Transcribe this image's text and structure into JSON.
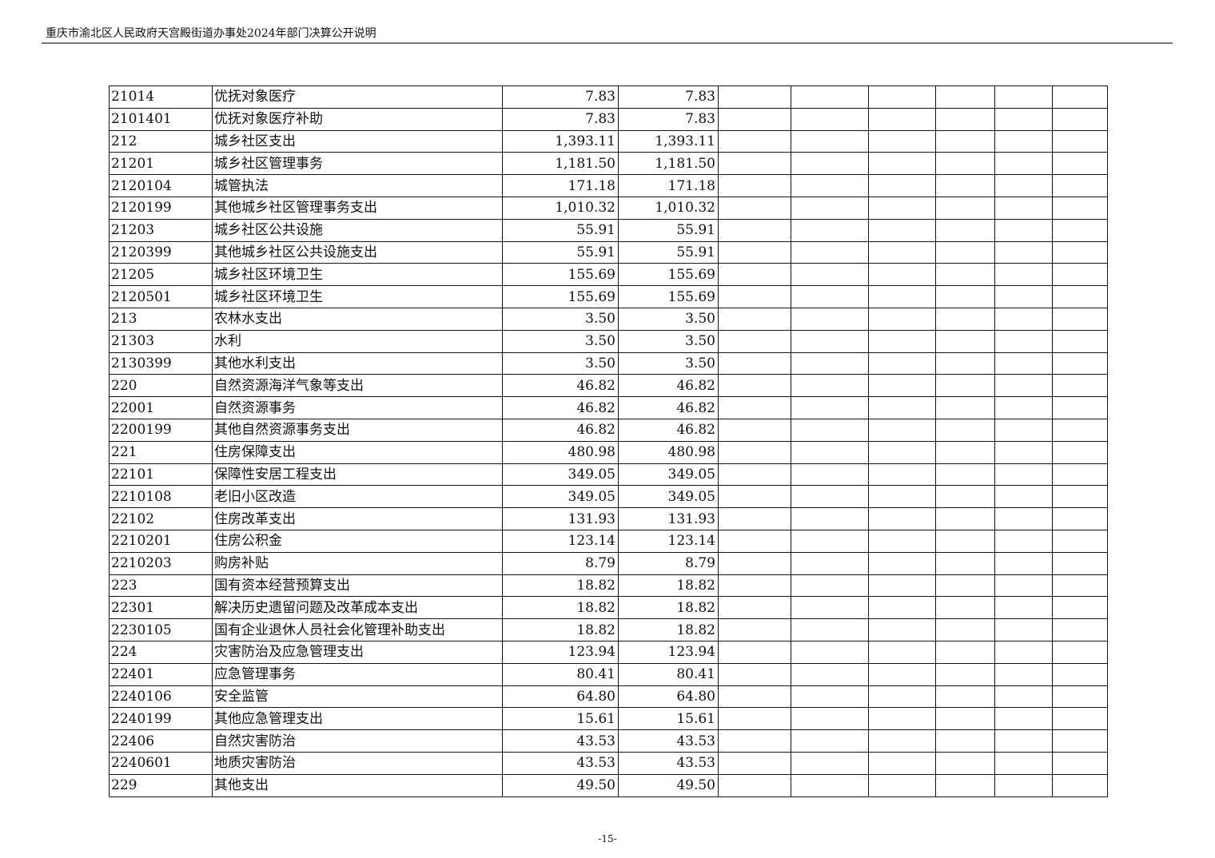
{
  "header": {
    "title": "重庆市渝北区人民政府天宫殿街道办事处2024年部门决算公开说明"
  },
  "table": {
    "rows": [
      {
        "code": "21014",
        "name": "优抚对象医疗",
        "v1": "7.83",
        "v2": "7.83"
      },
      {
        "code": "2101401",
        "name": "优抚对象医疗补助",
        "v1": "7.83",
        "v2": "7.83"
      },
      {
        "code": "212",
        "name": "城乡社区支出",
        "v1": "1,393.11",
        "v2": "1,393.11"
      },
      {
        "code": "21201",
        "name": "城乡社区管理事务",
        "v1": "1,181.50",
        "v2": "1,181.50"
      },
      {
        "code": "2120104",
        "name": "城管执法",
        "v1": "171.18",
        "v2": "171.18"
      },
      {
        "code": "2120199",
        "name": "其他城乡社区管理事务支出",
        "v1": "1,010.32",
        "v2": "1,010.32"
      },
      {
        "code": "21203",
        "name": "城乡社区公共设施",
        "v1": "55.91",
        "v2": "55.91"
      },
      {
        "code": "2120399",
        "name": "其他城乡社区公共设施支出",
        "v1": "55.91",
        "v2": "55.91"
      },
      {
        "code": "21205",
        "name": "城乡社区环境卫生",
        "v1": "155.69",
        "v2": "155.69"
      },
      {
        "code": "2120501",
        "name": "城乡社区环境卫生",
        "v1": "155.69",
        "v2": "155.69"
      },
      {
        "code": "213",
        "name": "农林水支出",
        "v1": "3.50",
        "v2": "3.50"
      },
      {
        "code": "21303",
        "name": "水利",
        "v1": "3.50",
        "v2": "3.50"
      },
      {
        "code": "2130399",
        "name": "其他水利支出",
        "v1": "3.50",
        "v2": "3.50"
      },
      {
        "code": "220",
        "name": "自然资源海洋气象等支出",
        "v1": "46.82",
        "v2": "46.82"
      },
      {
        "code": "22001",
        "name": "自然资源事务",
        "v1": "46.82",
        "v2": "46.82"
      },
      {
        "code": "2200199",
        "name": "其他自然资源事务支出",
        "v1": "46.82",
        "v2": "46.82"
      },
      {
        "code": "221",
        "name": "住房保障支出",
        "v1": "480.98",
        "v2": "480.98"
      },
      {
        "code": "22101",
        "name": "保障性安居工程支出",
        "v1": "349.05",
        "v2": "349.05"
      },
      {
        "code": "2210108",
        "name": "老旧小区改造",
        "v1": "349.05",
        "v2": "349.05"
      },
      {
        "code": "22102",
        "name": "住房改革支出",
        "v1": "131.93",
        "v2": "131.93"
      },
      {
        "code": "2210201",
        "name": "住房公积金",
        "v1": "123.14",
        "v2": "123.14"
      },
      {
        "code": "2210203",
        "name": "购房补贴",
        "v1": "8.79",
        "v2": "8.79"
      },
      {
        "code": "223",
        "name": "国有资本经营预算支出",
        "v1": "18.82",
        "v2": "18.82"
      },
      {
        "code": "22301",
        "name": "解决历史遗留问题及改革成本支出",
        "v1": "18.82",
        "v2": "18.82"
      },
      {
        "code": "2230105",
        "name": "国有企业退休人员社会化管理补助支出",
        "v1": "18.82",
        "v2": "18.82"
      },
      {
        "code": "224",
        "name": "灾害防治及应急管理支出",
        "v1": "123.94",
        "v2": "123.94"
      },
      {
        "code": "22401",
        "name": "应急管理事务",
        "v1": "80.41",
        "v2": "80.41"
      },
      {
        "code": "2240106",
        "name": "安全监管",
        "v1": "64.80",
        "v2": "64.80"
      },
      {
        "code": "2240199",
        "name": "其他应急管理支出",
        "v1": "15.61",
        "v2": "15.61"
      },
      {
        "code": "22406",
        "name": "自然灾害防治",
        "v1": "43.53",
        "v2": "43.53"
      },
      {
        "code": "2240601",
        "name": "地质灾害防治",
        "v1": "43.53",
        "v2": "43.53"
      },
      {
        "code": "229",
        "name": "其他支出",
        "v1": "49.50",
        "v2": "49.50"
      }
    ]
  },
  "footer": {
    "page": "-15-"
  }
}
